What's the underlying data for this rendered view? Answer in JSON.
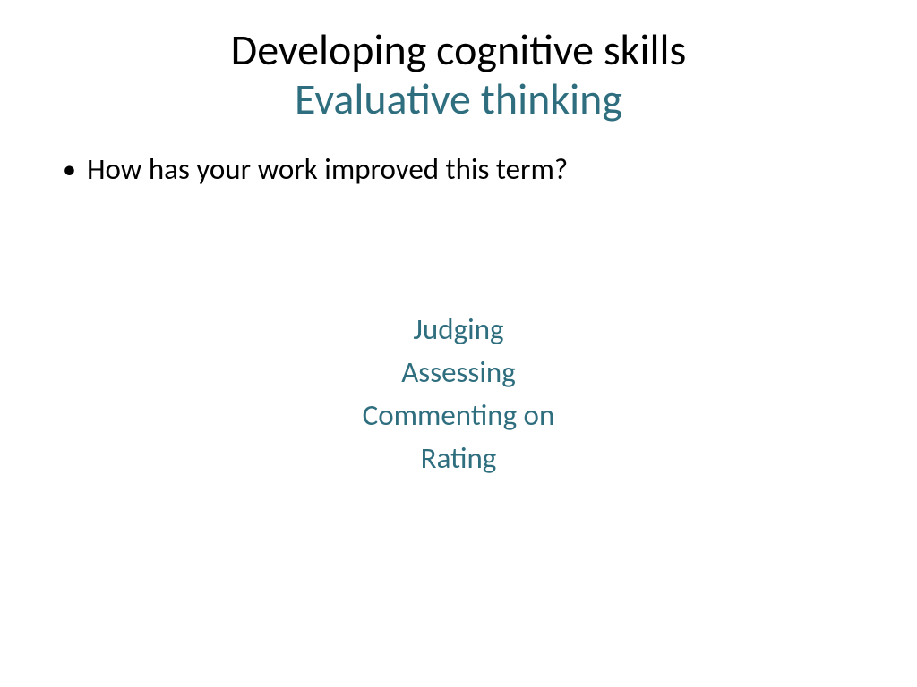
{
  "title": {
    "main": "Developing cognitive skills",
    "sub": "Evaluative thinking",
    "main_color": "#000000",
    "sub_color": "#2e6e7e",
    "fontsize": 48
  },
  "bullet": {
    "text": "How has your work improved this term?",
    "color": "#000000",
    "fontsize": 33
  },
  "keywords": {
    "items": [
      "Judging",
      "Assessing",
      "Commenting on",
      "Rating"
    ],
    "color": "#2e6e7e",
    "fontsize": 33
  },
  "background_color": "#ffffff"
}
